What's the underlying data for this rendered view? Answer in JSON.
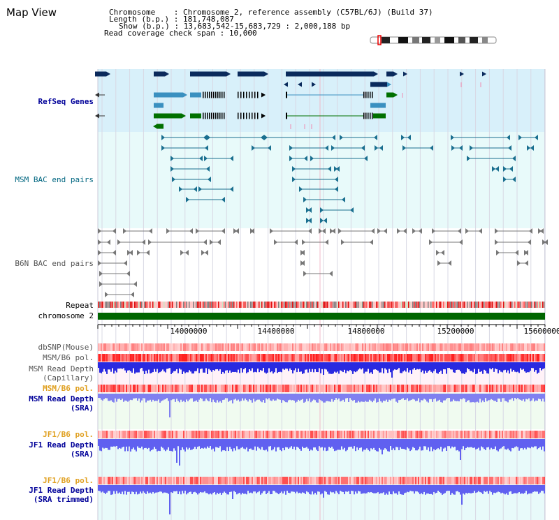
{
  "title": "Map View",
  "info": {
    "chromosome_key": "Chromosome",
    "chromosome_val": "Chromosome 2, reference assembly (C57BL/6J) (Build 37)",
    "length_key": "Length (b.p.)",
    "length_val": "181,748,087",
    "show_key": "Show (b.p.)",
    "show_val": "13,683,542-15,683,729 : 2,000,188 bp",
    "span_key": "Read coverage check span",
    "span_val": "10,000"
  },
  "tracks": {
    "refseq": "RefSeq Genes",
    "msm_bac": "MSM BAC end pairs",
    "b6n_bac": "B6N BAC end pairs",
    "repeat": "Repeat",
    "chromosome": "chromosome 2",
    "dbsnp": "dbSNP(Mouse)",
    "msm_b6_pol": "MSM/B6 pol.",
    "msm_read_cap_1": "MSM Read Depth",
    "msm_read_cap_2": "(Capillary)",
    "msm_b6_pol2": "MSM/B6 pol.",
    "msm_read_sra_1": "MSM Read Depth",
    "msm_read_sra_2": "(SRA)",
    "jf1_b6_pol": "JF1/B6 pol.",
    "jf1_read_sra_1": "JF1 Read Depth",
    "jf1_read_sra_2": "(SRA)",
    "jf1_b6_pol2": "JF1/B6 pol.",
    "jf1_trim_1": "JF1 Read Depth",
    "jf1_trim_2": "(SRA trimmed)"
  },
  "axis": {
    "ticks": [
      "14000000",
      "14400000",
      "14800000",
      "15200000",
      "15600000"
    ]
  },
  "colors": {
    "refseq_bg": "#d8f0fa",
    "bac_bg": "#e8fafa",
    "gene_dark": "#0a2a5c",
    "gene_mid": "#3a90c0",
    "gene_green": "#007000",
    "bac_teal": "#1a6f8f",
    "chrom_green": "#006600",
    "depth_blue": "#2a2ae0"
  }
}
